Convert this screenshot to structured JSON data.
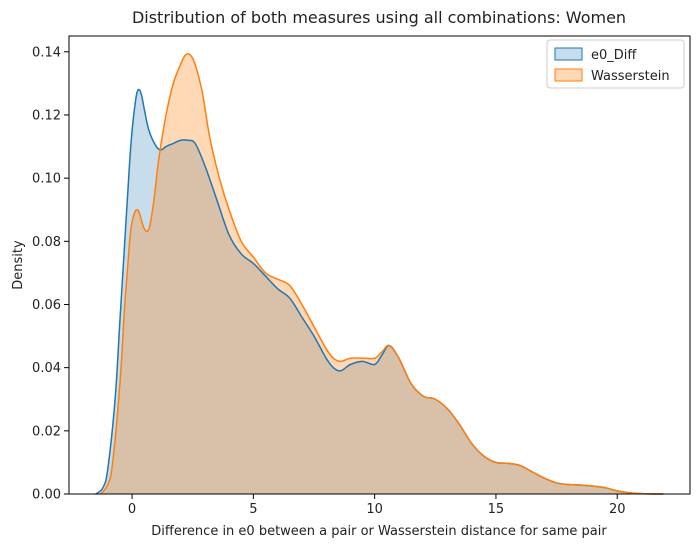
{
  "chart_data": {
    "type": "area",
    "title": "Distribution of both measures using all combinations: Women",
    "xlabel": "Difference in e0 between a pair or Wasserstein distance for same pair",
    "ylabel": "Density",
    "xlim": [
      -2.6,
      23.0
    ],
    "ylim": [
      0,
      0.145
    ],
    "xticks": [
      0,
      5,
      10,
      15,
      20
    ],
    "yticks": [
      0.0,
      0.02,
      0.04,
      0.06,
      0.08,
      0.1,
      0.12,
      0.14
    ],
    "ytick_labels": [
      "0.00",
      "0.02",
      "0.04",
      "0.06",
      "0.08",
      "0.10",
      "0.12",
      "0.14"
    ],
    "legend_position": "top-right",
    "series": [
      {
        "name": "e0_Diff",
        "color": "#1f77b4",
        "fill_alpha": 0.25,
        "x": [
          -1.5,
          -1.2,
          -1.0,
          -0.7,
          -0.5,
          -0.3,
          -0.1,
          0.0,
          0.1,
          0.2,
          0.3,
          0.4,
          0.5,
          0.7,
          1.0,
          1.2,
          1.4,
          1.7,
          2.0,
          2.3,
          2.6,
          3.0,
          3.5,
          4.0,
          4.5,
          5.0,
          5.5,
          6.0,
          6.5,
          7.0,
          7.5,
          8.0,
          8.3,
          8.6,
          9.0,
          9.5,
          10.0,
          10.3,
          10.6,
          11.0,
          11.5,
          12.0,
          12.5,
          13.0,
          13.5,
          14.0,
          14.5,
          15.0,
          15.5,
          16.0,
          16.5,
          17.0,
          17.5,
          18.0,
          18.5,
          19.0,
          19.5,
          20.0,
          20.5,
          21.0,
          21.5,
          21.9
        ],
        "y": [
          0.0,
          0.002,
          0.008,
          0.03,
          0.055,
          0.08,
          0.105,
          0.115,
          0.122,
          0.127,
          0.128,
          0.126,
          0.122,
          0.115,
          0.11,
          0.109,
          0.11,
          0.111,
          0.112,
          0.112,
          0.111,
          0.104,
          0.093,
          0.082,
          0.076,
          0.073,
          0.069,
          0.065,
          0.062,
          0.056,
          0.05,
          0.043,
          0.04,
          0.039,
          0.041,
          0.042,
          0.041,
          0.044,
          0.047,
          0.043,
          0.035,
          0.031,
          0.03,
          0.027,
          0.022,
          0.016,
          0.012,
          0.01,
          0.0097,
          0.009,
          0.007,
          0.005,
          0.0035,
          0.003,
          0.0028,
          0.0025,
          0.002,
          0.001,
          0.0004,
          0.0001,
          0.0,
          0.0
        ]
      },
      {
        "name": "Wasserstein",
        "color": "#ff7f0e",
        "fill_alpha": 0.3,
        "x": [
          -1.3,
          -1.0,
          -0.8,
          -0.5,
          -0.3,
          -0.1,
          0.0,
          0.1,
          0.2,
          0.3,
          0.5,
          0.7,
          0.9,
          1.1,
          1.4,
          1.7,
          2.0,
          2.2,
          2.4,
          2.6,
          2.9,
          3.2,
          3.6,
          4.0,
          4.5,
          5.0,
          5.5,
          6.0,
          6.5,
          7.0,
          7.5,
          8.0,
          8.3,
          8.6,
          9.0,
          9.5,
          10.0,
          10.3,
          10.6,
          11.0,
          11.5,
          12.0,
          12.5,
          13.0,
          13.5,
          14.0,
          14.5,
          15.0,
          15.5,
          16.0,
          16.5,
          17.0,
          17.5,
          18.0,
          18.5,
          19.0,
          19.5,
          20.0,
          20.5,
          21.0,
          21.5,
          21.9
        ],
        "y": [
          0.0,
          0.003,
          0.01,
          0.035,
          0.06,
          0.08,
          0.086,
          0.089,
          0.09,
          0.089,
          0.084,
          0.084,
          0.093,
          0.106,
          0.12,
          0.13,
          0.136,
          0.139,
          0.139,
          0.136,
          0.127,
          0.113,
          0.1,
          0.09,
          0.08,
          0.075,
          0.07,
          0.068,
          0.066,
          0.06,
          0.053,
          0.046,
          0.043,
          0.042,
          0.043,
          0.043,
          0.043,
          0.045,
          0.047,
          0.043,
          0.035,
          0.031,
          0.03,
          0.027,
          0.022,
          0.016,
          0.012,
          0.01,
          0.0097,
          0.009,
          0.007,
          0.005,
          0.0035,
          0.003,
          0.0028,
          0.0025,
          0.002,
          0.001,
          0.0004,
          0.0001,
          0.0,
          0.0
        ]
      }
    ]
  }
}
